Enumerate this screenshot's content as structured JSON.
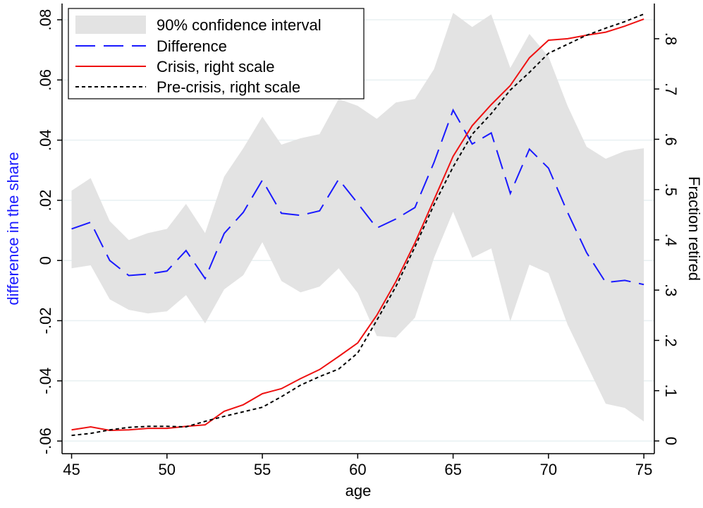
{
  "chart_data": {
    "type": "line",
    "x_label": "age",
    "y_label": "difference in the share",
    "y2_label": "Fraction retired",
    "x": [
      45,
      46,
      47,
      48,
      49,
      50,
      51,
      52,
      53,
      54,
      55,
      56,
      57,
      58,
      59,
      60,
      61,
      62,
      63,
      64,
      65,
      66,
      67,
      68,
      69,
      70,
      71,
      72,
      73,
      74,
      75
    ],
    "xlim": [
      44.5,
      75.55
    ],
    "xticks": [
      45,
      50,
      55,
      60,
      65,
      70,
      75
    ],
    "ylim": [
      -0.0642,
      0.0854
    ],
    "yticks": [
      {
        "value": -0.06,
        "label": "-.06"
      },
      {
        "value": -0.04,
        "label": "-.04"
      },
      {
        "value": -0.02,
        "label": "-.02"
      },
      0,
      {
        "value": 0.02,
        "label": ".02"
      },
      {
        "value": 0.04,
        "label": ".04"
      },
      {
        "value": 0.06,
        "label": ".06"
      },
      {
        "value": 0.08,
        "label": ".08"
      }
    ],
    "y2lim": [
      -0.0253,
      0.87
    ],
    "y2ticks": [
      0,
      {
        "value": 0.1,
        "label": ".1"
      },
      {
        "value": 0.2,
        "label": ".2"
      },
      {
        "value": 0.3,
        "label": ".3"
      },
      {
        "value": 0.4,
        "label": ".4"
      },
      {
        "value": 0.5,
        "label": ".5"
      },
      {
        "value": 0.6,
        "label": ".6"
      },
      {
        "value": 0.7,
        "label": ".7"
      },
      {
        "value": 0.8,
        "label": ".8"
      }
    ],
    "grid": true,
    "band": {
      "name": "90% confidence interval",
      "color": "#e3e3e3",
      "upper": [
        0.0232,
        0.0274,
        0.0131,
        0.0068,
        0.0091,
        0.0105,
        0.0188,
        0.0091,
        0.0279,
        0.0373,
        0.0478,
        0.0385,
        0.0406,
        0.042,
        0.0537,
        0.0514,
        0.0471,
        0.0525,
        0.0537,
        0.0636,
        0.0823,
        0.0776,
        0.0818,
        0.064,
        0.0753,
        0.0678,
        0.0514,
        0.0378,
        0.0338,
        0.0364,
        0.0373
      ],
      "lower": [
        -0.0026,
        -0.0016,
        -0.0129,
        -0.0164,
        -0.0176,
        -0.0169,
        -0.0115,
        -0.0209,
        -0.0096,
        -0.0049,
        0.0061,
        -0.0068,
        -0.0106,
        -0.0087,
        -0.0026,
        -0.0108,
        -0.0251,
        -0.0256,
        -0.019,
        0.0009,
        0.0162,
        0.0009,
        0.004,
        -0.0202,
        -0.0014,
        -0.0042,
        -0.0213,
        -0.0345,
        -0.0476,
        -0.049,
        -0.0535
      ]
    },
    "series": [
      {
        "name": "Difference",
        "color": "#1a1aff",
        "dash": "28 12",
        "axis": "y",
        "values": [
          0.0105,
          0.0127,
          0,
          -0.005,
          -0.0045,
          -0.0035,
          0.0033,
          -0.006,
          0.009,
          0.016,
          0.0267,
          0.0157,
          0.015,
          0.0165,
          0.027,
          0.019,
          0.0108,
          0.0138,
          0.0176,
          0.0326,
          0.05,
          0.0387,
          0.0424,
          0.0223,
          0.037,
          0.0307,
          0.016,
          0.0026,
          -0.0073,
          -0.0066,
          -0.008
        ]
      },
      {
        "name": "Crisis, right scale",
        "color": "#ee1111",
        "dash": "none",
        "axis": "y2",
        "values": [
          0.022,
          0.028,
          0.021,
          0.022,
          0.025,
          0.025,
          0.029,
          0.032,
          0.059,
          0.072,
          0.094,
          0.104,
          0.124,
          0.142,
          0.168,
          0.195,
          0.25,
          0.317,
          0.394,
          0.48,
          0.566,
          0.627,
          0.669,
          0.707,
          0.762,
          0.797,
          0.8,
          0.807,
          0.813,
          0.825,
          0.839
        ]
      },
      {
        "name": "Pre-crisis, right scale",
        "color": "#000000",
        "dash": "5 4",
        "axis": "y2",
        "values": [
          0.011,
          0.015,
          0.022,
          0.027,
          0.029,
          0.029,
          0.028,
          0.039,
          0.049,
          0.058,
          0.067,
          0.088,
          0.111,
          0.128,
          0.143,
          0.175,
          0.24,
          0.307,
          0.386,
          0.47,
          0.545,
          0.61,
          0.651,
          0.698,
          0.733,
          0.771,
          0.789,
          0.807,
          0.821,
          0.834,
          0.849
        ]
      }
    ]
  }
}
